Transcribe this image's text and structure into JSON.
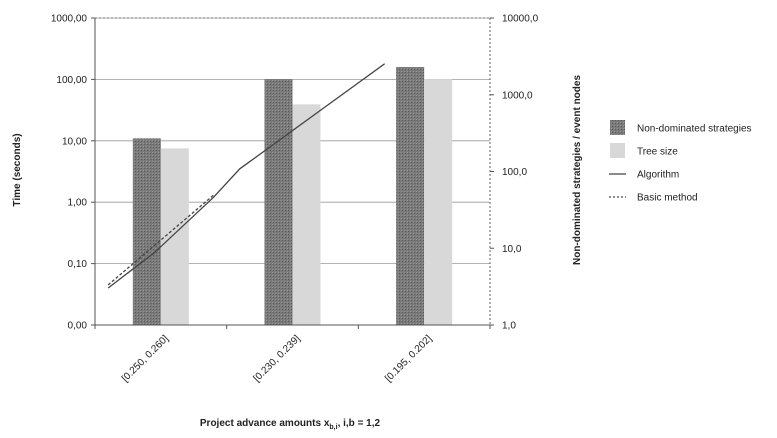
{
  "chart_data": {
    "type": "bar",
    "categories": [
      "[0.250, 0.260]",
      "[0.230, 0.239]",
      "[0.195, 0.202]"
    ],
    "xlabel_main": "Project advance amounts x",
    "xlabel_sub": "b,i",
    "xlabel_tail": ", i,b = 1,2",
    "ylabel_left": "Time (seconds)",
    "ylabel_right": "Non-dominated strategies / event nodes",
    "left_axis": {
      "scale": "log",
      "range": [
        0.01,
        1000
      ],
      "ticks": [
        0.01,
        0.1,
        1,
        10,
        100,
        1000
      ],
      "tick_labels": [
        "0,00",
        "0,10",
        "1,00",
        "10,00",
        "100,00",
        "1000,00"
      ]
    },
    "right_axis": {
      "scale": "log",
      "range": [
        1,
        10000
      ],
      "ticks": [
        1,
        10,
        100,
        1000,
        10000
      ],
      "tick_labels": [
        "1,0",
        "10,0",
        "100,0",
        "1000,0",
        "10000,0"
      ]
    },
    "grid": true,
    "legend_position": "right",
    "series": [
      {
        "name": "Non-dominated strategies",
        "kind": "bar",
        "axis": "right",
        "color": "#7a7a7a",
        "values": [
          270,
          1600,
          2300
        ]
      },
      {
        "name": "Tree size",
        "kind": "bar",
        "axis": "right",
        "color": "#d8d8d8",
        "values": [
          200,
          750,
          1600
        ]
      },
      {
        "name": "Algorithm",
        "kind": "line",
        "axis": "left",
        "style": "solid",
        "color": "#444444",
        "x": [
          0.1,
          0.45,
          0.9,
          1.1,
          1.7,
          2.2
        ],
        "values": [
          0.04,
          0.15,
          1.2,
          3.5,
          30,
          180
        ]
      },
      {
        "name": "Basic method",
        "kind": "line",
        "axis": "left",
        "style": "dashed",
        "color": "#444444",
        "x": [
          0.1,
          0.9
        ],
        "values": [
          0.045,
          1.3
        ]
      }
    ]
  }
}
